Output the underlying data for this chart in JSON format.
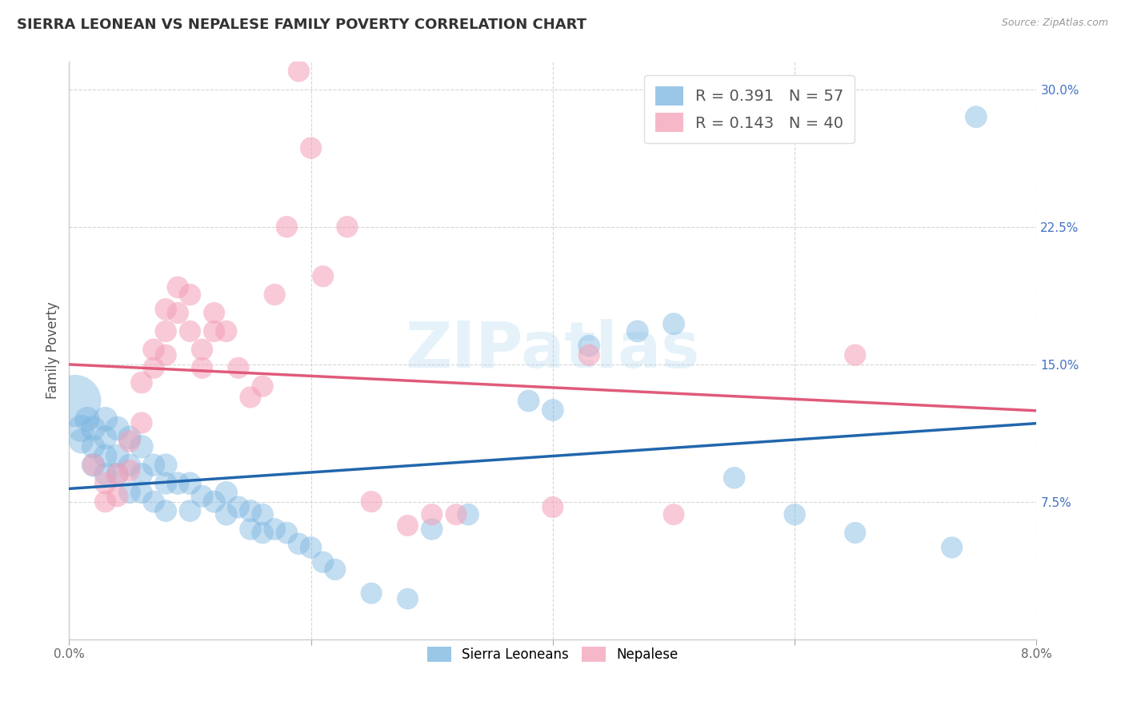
{
  "title": "SIERRA LEONEAN VS NEPALESE FAMILY POVERTY CORRELATION CHART",
  "source": "Source: ZipAtlas.com",
  "ylabel": "Family Poverty",
  "watermark": "ZIPatlas",
  "blue_R": 0.391,
  "blue_N": 57,
  "pink_R": 0.143,
  "pink_N": 40,
  "blue_color": "#7ab5e0",
  "pink_color": "#f4a0b8",
  "blue_line_color": "#2166ac",
  "pink_line_color": "#e05a7a",
  "blue_label": "Sierra Leoneans",
  "pink_label": "Nepalese",
  "xmin": 0.0,
  "xmax": 0.08,
  "ymin": 0.0,
  "ymax": 0.315,
  "blue_x": [
    0.0005,
    0.001,
    0.001,
    0.0015,
    0.002,
    0.002,
    0.002,
    0.003,
    0.003,
    0.003,
    0.003,
    0.004,
    0.004,
    0.004,
    0.005,
    0.005,
    0.005,
    0.006,
    0.006,
    0.006,
    0.007,
    0.007,
    0.008,
    0.008,
    0.008,
    0.009,
    0.01,
    0.01,
    0.011,
    0.012,
    0.013,
    0.013,
    0.014,
    0.015,
    0.015,
    0.016,
    0.016,
    0.017,
    0.018,
    0.019,
    0.02,
    0.021,
    0.022,
    0.025,
    0.028,
    0.03,
    0.033,
    0.038,
    0.04,
    0.043,
    0.047,
    0.05,
    0.055,
    0.06,
    0.065,
    0.073,
    0.075
  ],
  "blue_y": [
    0.13,
    0.115,
    0.108,
    0.12,
    0.115,
    0.105,
    0.095,
    0.12,
    0.11,
    0.1,
    0.09,
    0.115,
    0.1,
    0.09,
    0.11,
    0.095,
    0.08,
    0.105,
    0.09,
    0.08,
    0.095,
    0.075,
    0.095,
    0.085,
    0.07,
    0.085,
    0.085,
    0.07,
    0.078,
    0.075,
    0.08,
    0.068,
    0.072,
    0.07,
    0.06,
    0.068,
    0.058,
    0.06,
    0.058,
    0.052,
    0.05,
    0.042,
    0.038,
    0.025,
    0.022,
    0.06,
    0.068,
    0.13,
    0.125,
    0.16,
    0.168,
    0.172,
    0.088,
    0.068,
    0.058,
    0.05,
    0.285
  ],
  "blue_sizes": [
    2200,
    600,
    500,
    500,
    500,
    450,
    450,
    500,
    450,
    450,
    420,
    480,
    450,
    420,
    450,
    420,
    400,
    450,
    420,
    400,
    420,
    400,
    430,
    410,
    400,
    420,
    420,
    400,
    410,
    410,
    420,
    400,
    410,
    410,
    395,
    400,
    395,
    400,
    400,
    395,
    395,
    390,
    385,
    380,
    375,
    395,
    395,
    400,
    400,
    405,
    405,
    405,
    395,
    390,
    385,
    385,
    400
  ],
  "pink_x": [
    0.002,
    0.003,
    0.003,
    0.004,
    0.004,
    0.005,
    0.005,
    0.006,
    0.006,
    0.007,
    0.007,
    0.008,
    0.008,
    0.008,
    0.009,
    0.009,
    0.01,
    0.01,
    0.011,
    0.011,
    0.012,
    0.012,
    0.013,
    0.014,
    0.015,
    0.016,
    0.017,
    0.018,
    0.019,
    0.02,
    0.021,
    0.023,
    0.025,
    0.028,
    0.03,
    0.032,
    0.04,
    0.043,
    0.05,
    0.065
  ],
  "pink_y": [
    0.095,
    0.085,
    0.075,
    0.09,
    0.078,
    0.108,
    0.092,
    0.14,
    0.118,
    0.158,
    0.148,
    0.18,
    0.168,
    0.155,
    0.192,
    0.178,
    0.188,
    0.168,
    0.158,
    0.148,
    0.168,
    0.178,
    0.168,
    0.148,
    0.132,
    0.138,
    0.188,
    0.225,
    0.31,
    0.268,
    0.198,
    0.225,
    0.075,
    0.062,
    0.068,
    0.068,
    0.072,
    0.155,
    0.068,
    0.155
  ],
  "pink_sizes": [
    400,
    400,
    390,
    400,
    390,
    400,
    390,
    400,
    390,
    400,
    390,
    400,
    390,
    385,
    400,
    390,
    395,
    385,
    390,
    385,
    390,
    385,
    390,
    385,
    385,
    385,
    390,
    390,
    390,
    390,
    385,
    390,
    385,
    380,
    385,
    380,
    385,
    390,
    380,
    390
  ]
}
